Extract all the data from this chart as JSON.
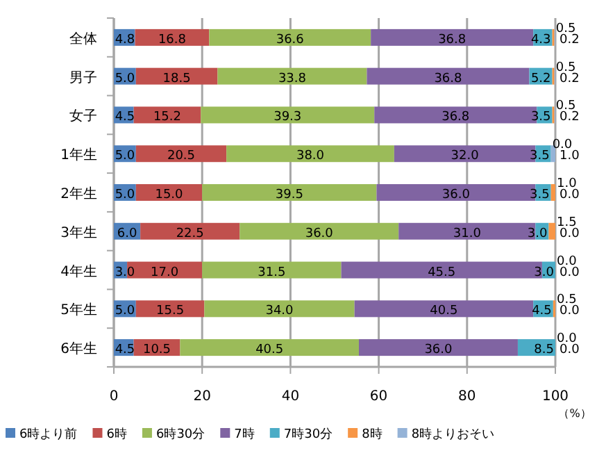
{
  "chart_data": {
    "type": "bar",
    "orientation": "horizontal",
    "stacked": true,
    "categories": [
      "全体",
      "男子",
      "女子",
      "1年生",
      "2年生",
      "3年生",
      "4年生",
      "5年生",
      "6年生"
    ],
    "series": [
      {
        "name": "6時より前",
        "color": "#4f81bd",
        "values": [
          4.8,
          5,
          4.5,
          5,
          5,
          6,
          3,
          5,
          4.5
        ],
        "value_labels": [
          "4.8",
          "5.0",
          "4.5",
          "5.0",
          "5.0",
          "6.0",
          "3.0",
          "5.0",
          "4.5"
        ]
      },
      {
        "name": "6時",
        "color": "#c0504d",
        "values": [
          16.8,
          18.5,
          15.2,
          20.5,
          15,
          22.5,
          17,
          15.5,
          10.5
        ],
        "value_labels": [
          "16.8",
          "18.5",
          "15.2",
          "20.5",
          "15.0",
          "22.5",
          "17.0",
          "15.5",
          "10.5"
        ]
      },
      {
        "name": "6時30分",
        "color": "#9bbb59",
        "values": [
          36.6,
          33.8,
          39.3,
          38,
          39.5,
          36,
          31.5,
          34,
          40.5
        ],
        "value_labels": [
          "36.6",
          "33.8",
          "39.3",
          "38.0",
          "39.5",
          "36.0",
          "31.5",
          "34.0",
          "40.5"
        ]
      },
      {
        "name": "7時",
        "color": "#8064a2",
        "values": [
          36.8,
          36.8,
          36.8,
          32,
          36,
          31,
          45.5,
          40.5,
          36
        ],
        "value_labels": [
          "36.8",
          "36.8",
          "36.8",
          "32.0",
          "36.0",
          "31.0",
          "45.5",
          "40.5",
          "36.0"
        ]
      },
      {
        "name": "7時30分",
        "color": "#4bacc6",
        "values": [
          4.3,
          5.2,
          3.5,
          3.5,
          3.5,
          3,
          3,
          4.5,
          8.5
        ],
        "value_labels": [
          "4.3",
          "5.2",
          "3.5",
          "3.5",
          "3.5",
          "3.0",
          "3.0",
          "4.5",
          "8.5"
        ]
      },
      {
        "name": "8時",
        "color": "#f79646",
        "values": [
          0.5,
          0.5,
          0.5,
          0,
          1,
          1.5,
          0,
          0.5,
          0
        ],
        "value_labels": [
          "0.5",
          "0.5",
          "0.5",
          "0.0",
          "1.0",
          "1.5",
          "0.0",
          "0.5",
          "0.0"
        ]
      },
      {
        "name": "8時よりおそい",
        "color": "#95b3d7",
        "values": [
          0.2,
          0.2,
          0.2,
          1,
          0,
          0,
          0,
          0,
          0
        ],
        "value_labels": [
          "0.2",
          "0.2",
          "0.2",
          "1.0",
          "0.0",
          "0.0",
          "0.0",
          "0.0",
          "0.0"
        ]
      }
    ],
    "xlim": [
      0,
      100
    ],
    "xticks": [
      0,
      20,
      40,
      60,
      80,
      100
    ],
    "grid": "x",
    "legend": "bottom",
    "annotations": [
      "（%）"
    ]
  }
}
